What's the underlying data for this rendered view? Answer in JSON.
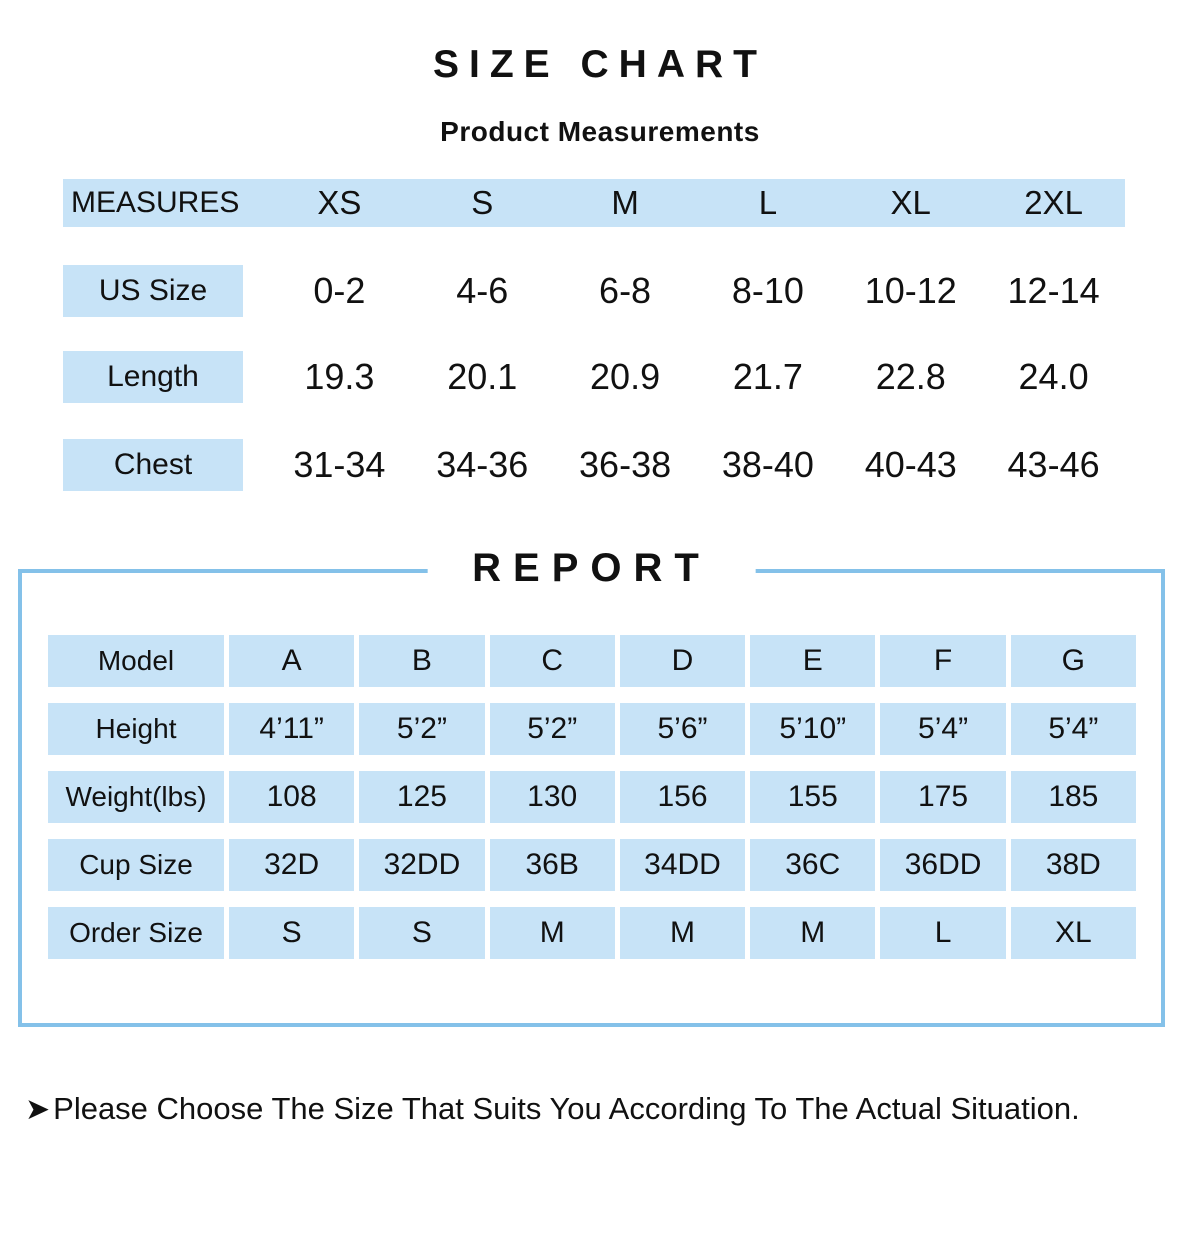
{
  "page": {
    "title": "SIZE CHART",
    "subtitle": "Product Measurements"
  },
  "size_chart": {
    "header": {
      "label": "MEASURES",
      "columns": [
        "XS",
        "S",
        "M",
        "L",
        "XL",
        "2XL"
      ]
    },
    "rows": [
      {
        "label": "US Size",
        "values": [
          "0-2",
          "4-6",
          "6-8",
          "8-10",
          "10-12",
          "12-14"
        ]
      },
      {
        "label": "Length",
        "values": [
          "19.3",
          "20.1",
          "20.9",
          "21.7",
          "22.8",
          "24.0"
        ]
      },
      {
        "label": "Chest",
        "values": [
          "31-34",
          "34-36",
          "36-38",
          "38-40",
          "40-43",
          "43-46"
        ]
      }
    ]
  },
  "report": {
    "title": "REPORT",
    "rows": [
      {
        "label": "Model",
        "values": [
          "A",
          "B",
          "C",
          "D",
          "E",
          "F",
          "G"
        ]
      },
      {
        "label": "Height",
        "values": [
          "4’11”",
          "5’2”",
          "5’2”",
          "5’6”",
          "5’10”",
          "5’4”",
          "5’4”"
        ]
      },
      {
        "label": "Weight(lbs)",
        "values": [
          "108",
          "125",
          "130",
          "156",
          "155",
          "175",
          "185"
        ]
      },
      {
        "label": "Cup Size",
        "values": [
          "32D",
          "32DD",
          "36B",
          "34DD",
          "36C",
          "36DD",
          "38D"
        ]
      },
      {
        "label": "Order Size",
        "values": [
          "S",
          "S",
          "M",
          "M",
          "M",
          "L",
          "XL"
        ]
      }
    ]
  },
  "note": {
    "arrow": "➤",
    "text": "Please Choose The Size That Suits You According To The Actual Situation."
  },
  "colors": {
    "cell_blue": "#c7e3f7",
    "border_blue": "#84c1e9",
    "text": "#111111"
  }
}
